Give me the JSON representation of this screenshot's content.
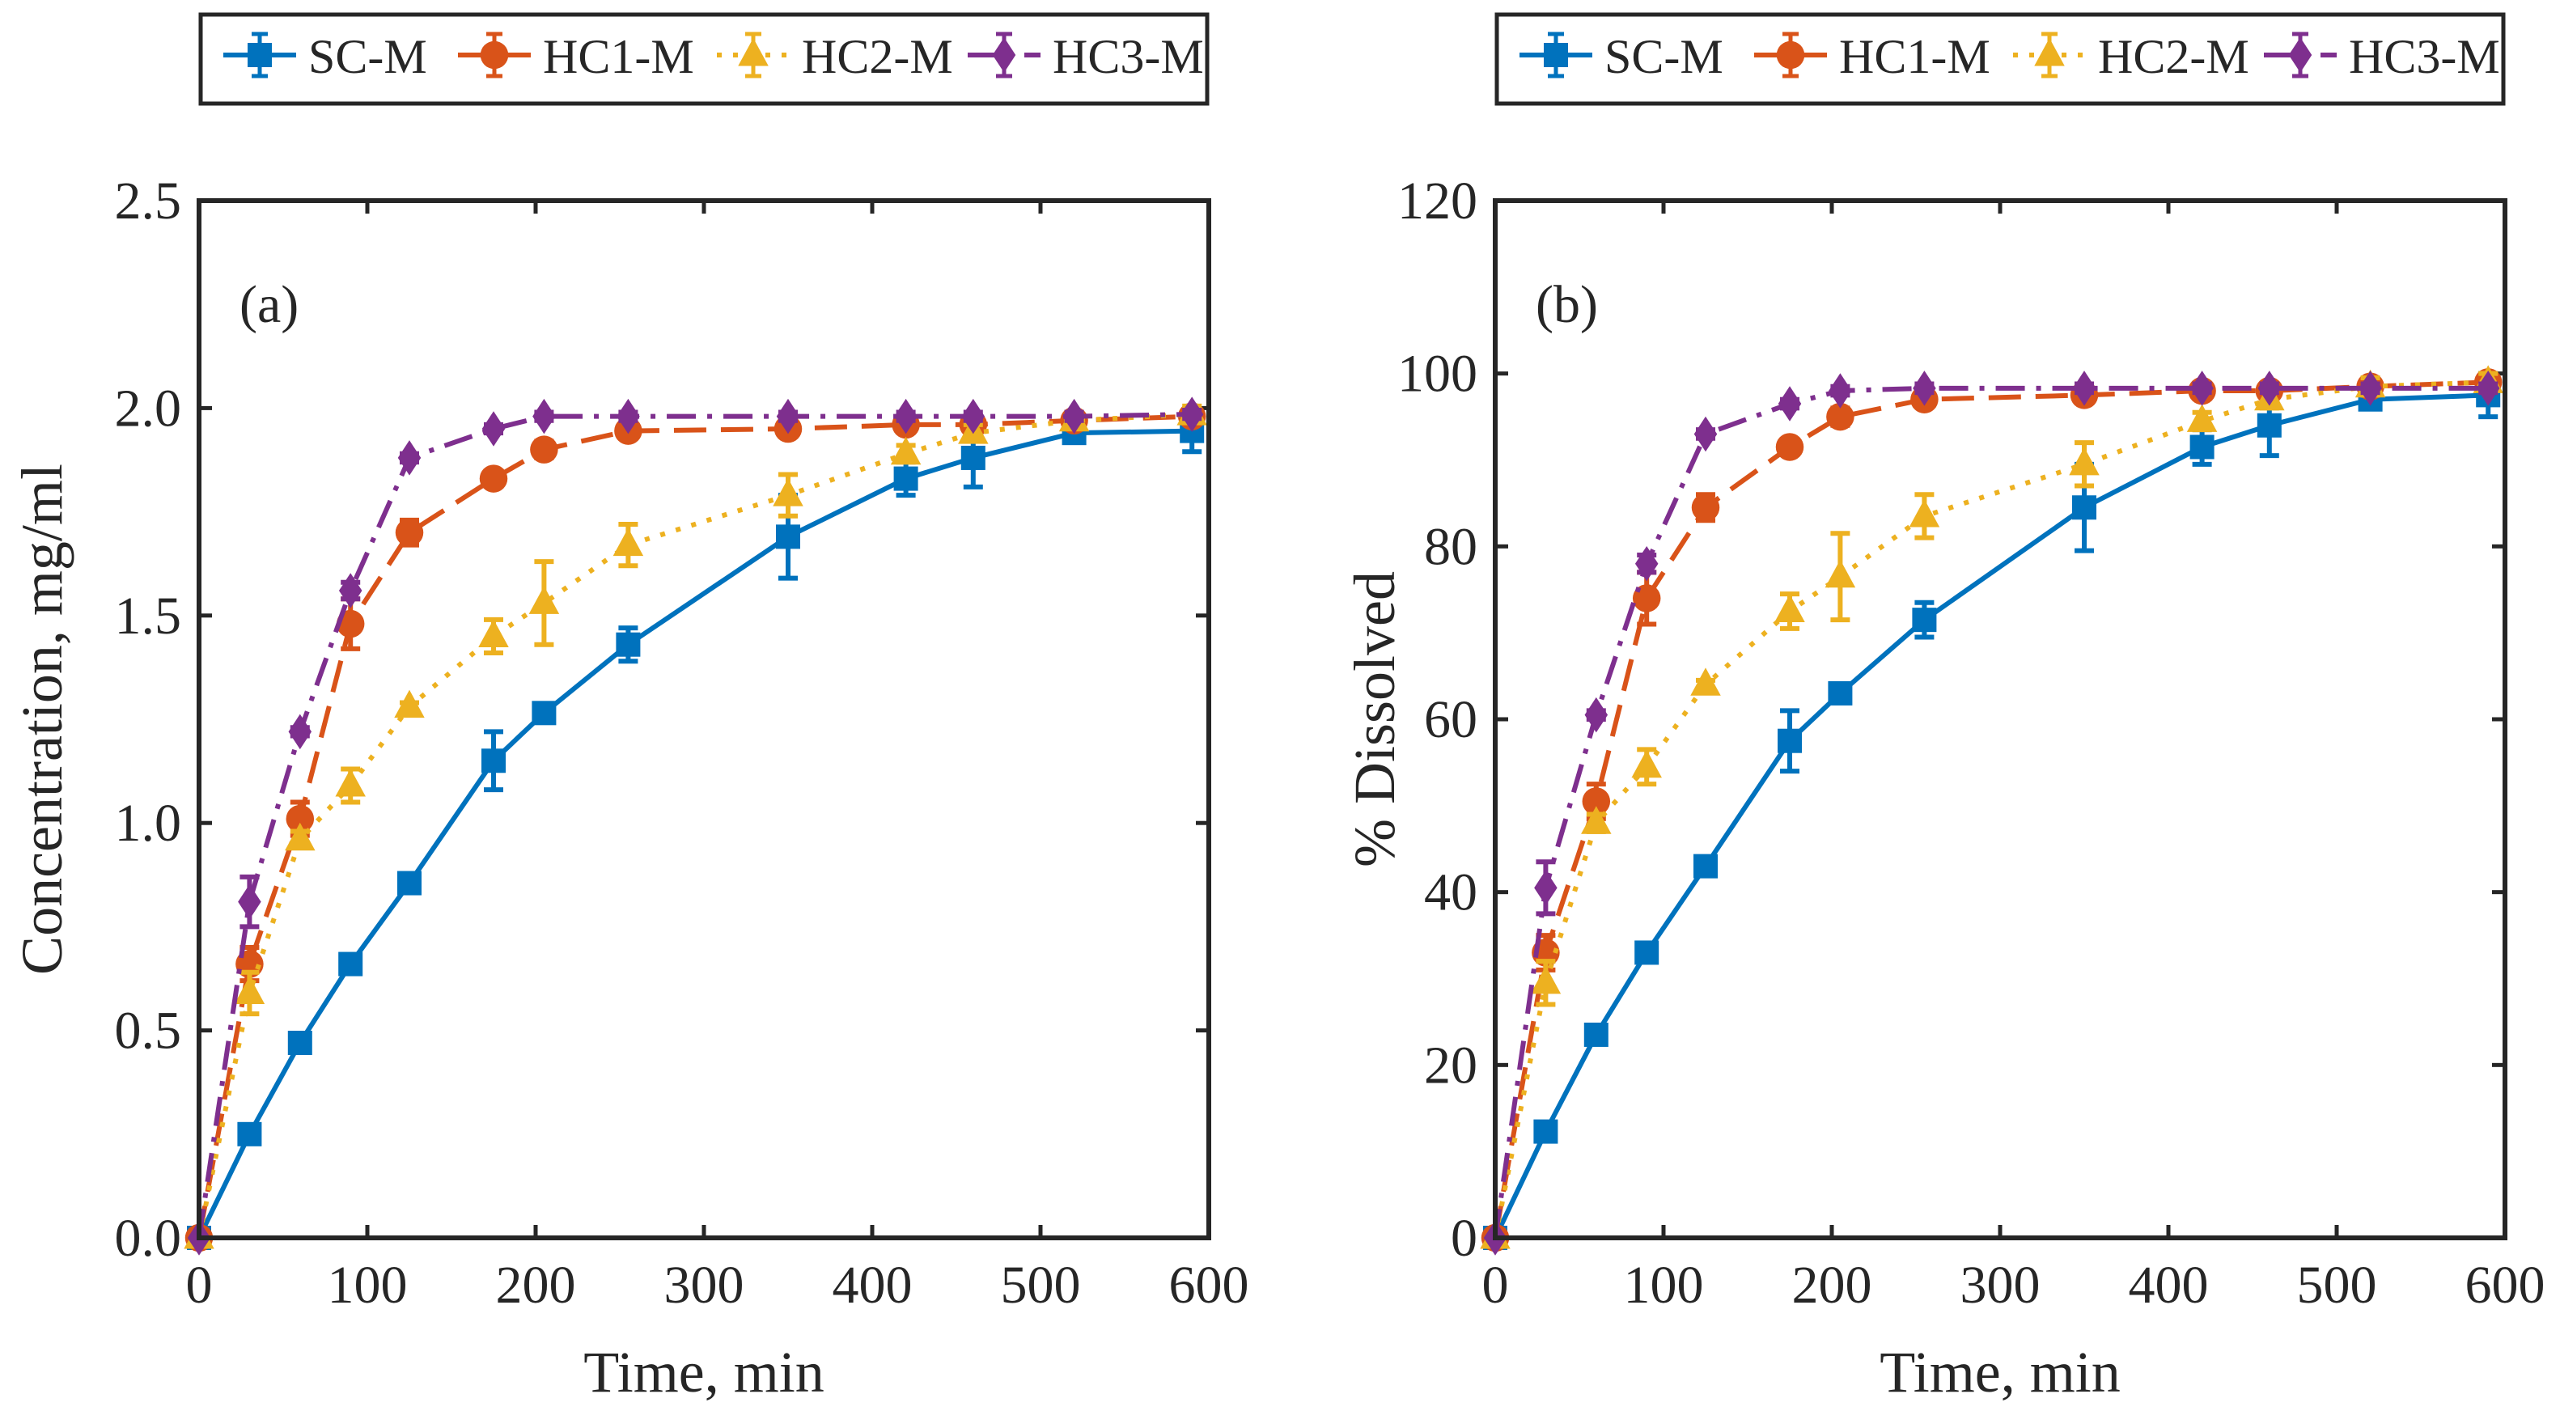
{
  "chart_data": [
    {
      "type": "line",
      "panel_label": "(a)",
      "xlabel": "Time, min",
      "ylabel": "Concentration, mg/ml",
      "xlim": [
        0,
        600
      ],
      "ylim": [
        0,
        2.5
      ],
      "xticks": [
        "0",
        "100",
        "200",
        "300",
        "400",
        "500",
        "600"
      ],
      "yticks": [
        "0.0",
        "0.5",
        "1.0",
        "1.5",
        "2.0",
        "2.5"
      ],
      "grid": false,
      "legend_position": "top (outside, horizontal)",
      "x": [
        0,
        30,
        60,
        90,
        125,
        175,
        205,
        255,
        350,
        420,
        460,
        520,
        590
      ],
      "series": [
        {
          "name": "SC-M",
          "color": "#0072BD",
          "marker": "square",
          "line": "solid",
          "values": [
            0,
            0.25,
            0.47,
            0.66,
            0.855,
            1.15,
            1.265,
            1.43,
            1.69,
            1.83,
            1.88,
            1.94,
            1.945
          ],
          "errors": [
            0,
            0.01,
            0.01,
            0.01,
            0.01,
            0.07,
            0.01,
            0.04,
            0.1,
            0.04,
            0.07,
            0.01,
            0.05
          ]
        },
        {
          "name": "HC1-M",
          "color": "#D95319",
          "marker": "circle",
          "line": "dashed",
          "values": [
            0,
            0.66,
            1.01,
            1.48,
            1.7,
            1.83,
            1.9,
            1.945,
            1.95,
            1.96,
            1.96,
            1.97,
            1.98
          ],
          "errors": [
            0,
            0.04,
            0.04,
            0.06,
            0.03,
            0.01,
            0.02,
            0.01,
            0.01,
            0.01,
            0.01,
            0.01,
            0.01
          ]
        },
        {
          "name": "HC2-M",
          "color": "#EDB120",
          "marker": "triangle",
          "line": "dotted",
          "values": [
            0,
            0.59,
            0.96,
            1.09,
            1.28,
            1.45,
            1.53,
            1.67,
            1.79,
            1.89,
            1.94,
            1.97,
            1.985
          ],
          "errors": [
            0,
            0.05,
            0.02,
            0.04,
            0.01,
            0.04,
            0.1,
            0.05,
            0.05,
            0.02,
            0.02,
            0.02,
            0.02
          ]
        },
        {
          "name": "HC3-M",
          "color": "#7E2F8E",
          "marker": "diamond",
          "line": "dashdot",
          "values": [
            0,
            0.81,
            1.22,
            1.56,
            1.88,
            1.95,
            1.98,
            1.98,
            1.98,
            1.98,
            1.98,
            1.98,
            1.985
          ],
          "errors": [
            0,
            0.06,
            0.01,
            0.02,
            0.01,
            0.01,
            0.01,
            0.01,
            0.01,
            0.01,
            0.01,
            0.01,
            0.01
          ]
        }
      ]
    },
    {
      "type": "line",
      "panel_label": "(b)",
      "xlabel": "Time, min",
      "ylabel": "% Dissolved",
      "xlim": [
        0,
        600
      ],
      "ylim": [
        0,
        120
      ],
      "xticks": [
        "0",
        "100",
        "200",
        "300",
        "400",
        "500",
        "600"
      ],
      "yticks": [
        "0",
        "20",
        "40",
        "60",
        "80",
        "100",
        "120"
      ],
      "grid": false,
      "legend_position": "top (outside, horizontal)",
      "x": [
        0,
        30,
        60,
        90,
        125,
        175,
        205,
        255,
        350,
        420,
        460,
        520,
        590
      ],
      "series": [
        {
          "name": "SC-M",
          "color": "#0072BD",
          "marker": "square",
          "line": "solid",
          "values": [
            0,
            12.3,
            23.5,
            33,
            43,
            57.5,
            63,
            71.5,
            84.5,
            91.5,
            94,
            97,
            97.5
          ],
          "errors": [
            0,
            0.5,
            0.5,
            0.5,
            0.5,
            3.5,
            0.5,
            2,
            5,
            2,
            3.5,
            0.5,
            2.5
          ]
        },
        {
          "name": "HC1-M",
          "color": "#D95319",
          "marker": "circle",
          "line": "dashed",
          "values": [
            0,
            33,
            50.5,
            74,
            84.5,
            91.5,
            95,
            97,
            97.5,
            98,
            98,
            98.5,
            99
          ],
          "errors": [
            0,
            2,
            2,
            3,
            1.5,
            0.5,
            1,
            0.5,
            0.5,
            0.5,
            0.5,
            0.5,
            0.5
          ]
        },
        {
          "name": "HC2-M",
          "color": "#EDB120",
          "marker": "triangle",
          "line": "dotted",
          "values": [
            0,
            29.5,
            48,
            54.5,
            64,
            72.5,
            76.5,
            83.5,
            89.5,
            94.5,
            97,
            98.5,
            99
          ],
          "errors": [
            0,
            2.5,
            1,
            2,
            0.5,
            2,
            5,
            2.5,
            2.5,
            1,
            1,
            1,
            1
          ]
        },
        {
          "name": "HC3-M",
          "color": "#7E2F8E",
          "marker": "diamond",
          "line": "dashdot",
          "values": [
            0,
            40.5,
            60.5,
            78,
            93,
            96.5,
            98,
            98.3,
            98.3,
            98.3,
            98.3,
            98.3,
            98.3
          ],
          "errors": [
            0,
            3,
            0.5,
            1,
            0.5,
            0.5,
            0.5,
            0.5,
            0.5,
            0.5,
            0.5,
            0.5,
            0.5
          ]
        }
      ]
    }
  ]
}
